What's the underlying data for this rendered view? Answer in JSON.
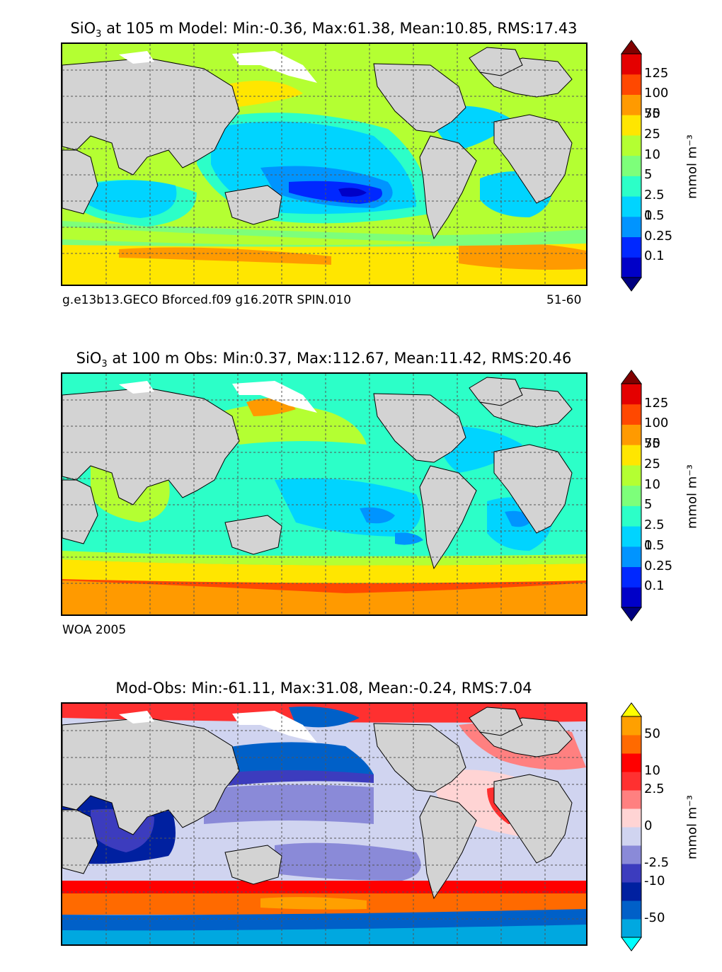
{
  "panels": [
    {
      "title_var": "SiO",
      "title_sub": "3",
      "title_rest": " at 105 m Model: Min:-0.36, Max:61.38, Mean:10.85, RMS:17.43",
      "caption_left": "g.e13b13.GECO Bforced.f09 g16.20TR SPIN.010",
      "caption_right": "51-60",
      "colorbar": {
        "unit": "mmol m⁻³",
        "ticks": [
          "125",
          "100",
          "75",
          "50",
          "25",
          "10",
          "5",
          "2.5",
          "1",
          "0.5",
          "0.25",
          "0.1"
        ],
        "colors": [
          "#000080",
          "#0000c8",
          "#0028ff",
          "#0094ff",
          "#00d4ff",
          "#2cffc8",
          "#7dff7a",
          "#b4ff32",
          "#ffe600",
          "#ff9a00",
          "#ff4800",
          "#e40000",
          "#800000"
        ]
      }
    },
    {
      "title_var": "SiO",
      "title_sub": "3",
      "title_rest": " at 100 m Obs: Min:0.37, Max:112.67, Mean:11.42, RMS:20.46",
      "caption_left": "WOA 2005",
      "caption_right": "",
      "colorbar": {
        "unit": "mmol m⁻³",
        "ticks": [
          "125",
          "100",
          "75",
          "50",
          "25",
          "10",
          "5",
          "2.5",
          "1",
          "0.5",
          "0.25",
          "0.1"
        ],
        "colors": [
          "#000080",
          "#0000c8",
          "#0028ff",
          "#0094ff",
          "#00d4ff",
          "#2cffc8",
          "#7dff7a",
          "#b4ff32",
          "#ffe600",
          "#ff9a00",
          "#ff4800",
          "#e40000",
          "#800000"
        ]
      }
    },
    {
      "title_var": "",
      "title_sub": "",
      "title_rest": "Mod-Obs: Min:-61.11, Max:31.08, Mean:-0.24, RMS:7.04",
      "caption_left": "",
      "caption_right": "",
      "colorbar": {
        "unit": "mmol m⁻³",
        "ticks": [
          "50",
          "10",
          "2.5",
          "0",
          "-2.5",
          "-10",
          "-50"
        ],
        "colors": [
          "#00ffff",
          "#00a8e0",
          "#0060c8",
          "#0020a0",
          "#3c3cbe",
          "#8a8ad8",
          "#d0d4f0",
          "#ffd4d4",
          "#ff8080",
          "#ff3030",
          "#ff0000",
          "#ff6a00",
          "#ffa000",
          "#ffff00"
        ]
      }
    }
  ],
  "map_colors": {
    "land": "#d3d3d3",
    "ice": "#ffffff",
    "grid": "#555555",
    "coast": "#000000"
  }
}
